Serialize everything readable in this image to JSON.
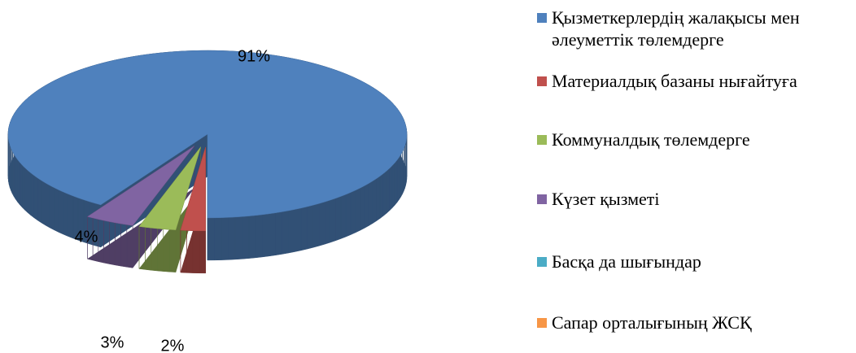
{
  "chart_data": {
    "type": "pie",
    "categories": [
      "Қызметкерлердің жалақысы мен әлеуметтік төлемдерге",
      "Материалдық базаны нығайтуға",
      "Коммуналдық төлемдерге",
      "Күзет қызметі",
      "Басқа да шығындар",
      "Сапар орталығының ЖСҚ"
    ],
    "values": [
      91,
      2,
      3,
      4,
      0,
      0
    ],
    "value_labels": [
      "91%",
      "2%",
      "3%",
      "4%",
      null,
      null
    ],
    "colors": [
      "#4F81BD",
      "#C0504D",
      "#9BBB59",
      "#8064A2",
      "#4BACC6",
      "#F79646"
    ],
    "legend": "right"
  }
}
